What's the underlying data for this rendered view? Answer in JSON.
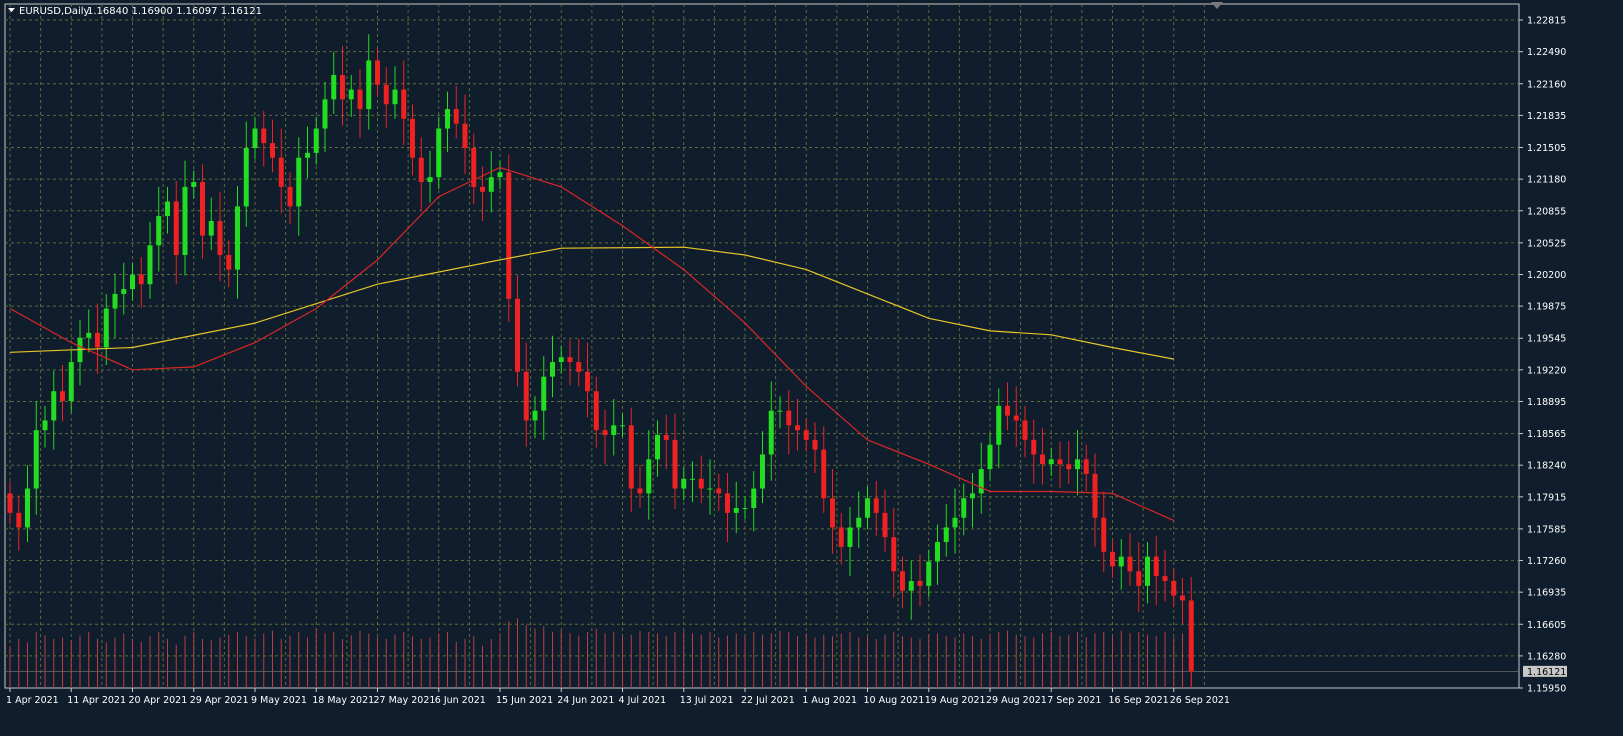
{
  "chart_data": {
    "type": "candlestick",
    "symbol": "EURUSD",
    "timeframe": "Daily",
    "ohlc_header": [
      "1.16840",
      "1.16900",
      "1.16097",
      "1.16121"
    ],
    "current_price": 1.16121,
    "current_price_label": "1.16121",
    "ylim": [
      1.1595,
      1.2298
    ],
    "y_ticks": [
      "1.22815",
      "1.22490",
      "1.22160",
      "1.21835",
      "1.21505",
      "1.21180",
      "1.20855",
      "1.20525",
      "1.20200",
      "1.19875",
      "1.19545",
      "1.19220",
      "1.18895",
      "1.18565",
      "1.18240",
      "1.17915",
      "1.17585",
      "1.17260",
      "1.16935",
      "1.16605",
      "1.16280",
      "1.15950"
    ],
    "x_labels": [
      {
        "i": 0,
        "label": "1 Apr 2021"
      },
      {
        "i": 7,
        "label": "11 Apr 2021"
      },
      {
        "i": 14,
        "label": "20 Apr 2021"
      },
      {
        "i": 21,
        "label": "29 Apr 2021"
      },
      {
        "i": 28,
        "label": "9 May 2021"
      },
      {
        "i": 35,
        "label": "18 May 2021"
      },
      {
        "i": 42,
        "label": "27 May 2021"
      },
      {
        "i": 49,
        "label": "6 Jun 2021"
      },
      {
        "i": 56,
        "label": "15 Jun 2021"
      },
      {
        "i": 63,
        "label": "24 Jun 2021"
      },
      {
        "i": 70,
        "label": "4 Jul 2021"
      },
      {
        "i": 77,
        "label": "13 Jul 2021"
      },
      {
        "i": 84,
        "label": "22 Jul 2021"
      },
      {
        "i": 91,
        "label": "1 Aug 2021"
      },
      {
        "i": 98,
        "label": "10 Aug 2021"
      },
      {
        "i": 105,
        "label": "19 Aug 2021"
      },
      {
        "i": 112,
        "label": "29 Aug 2021"
      },
      {
        "i": 119,
        "label": "7 Sep 2021"
      },
      {
        "i": 126,
        "label": "16 Sep 2021"
      },
      {
        "i": 133,
        "label": "26 Sep 2021"
      }
    ],
    "close_series": [
      1.1775,
      1.176,
      1.18,
      1.186,
      1.187,
      1.19,
      1.189,
      1.193,
      1.1955,
      1.196,
      1.1945,
      1.1985,
      1.2,
      1.2005,
      1.202,
      1.201,
      1.205,
      1.208,
      1.2095,
      1.204,
      1.211,
      1.2115,
      1.206,
      1.2075,
      1.204,
      1.2025,
      1.209,
      1.215,
      1.217,
      1.2155,
      1.214,
      1.211,
      1.209,
      1.214,
      1.2145,
      1.217,
      1.22,
      1.2225,
      1.22,
      1.221,
      1.219,
      1.224,
      1.2215,
      1.2195,
      1.221,
      1.218,
      1.214,
      1.2115,
      1.212,
      1.217,
      1.219,
      1.2175,
      1.215,
      1.211,
      1.2105,
      1.212,
      1.2125,
      1.1995,
      1.192,
      1.187,
      1.188,
      1.1915,
      1.193,
      1.1935,
      1.193,
      1.192,
      1.19,
      1.186,
      1.1855,
      1.1865,
      1.1865,
      1.18,
      1.1795,
      1.183,
      1.1855,
      1.185,
      1.18,
      1.181,
      1.181,
      1.18,
      1.18,
      1.1795,
      1.1775,
      1.178,
      1.178,
      1.18,
      1.1835,
      1.188,
      1.188,
      1.1865,
      1.186,
      1.185,
      1.184,
      1.179,
      1.176,
      1.174,
      1.176,
      1.177,
      1.179,
      1.1775,
      1.175,
      1.1715,
      1.1695,
      1.1705,
      1.17,
      1.1725,
      1.1745,
      1.176,
      1.177,
      1.179,
      1.1795,
      1.182,
      1.1845,
      1.1885,
      1.1875,
      1.187,
      1.185,
      1.1835,
      1.1825,
      1.183,
      1.1825,
      1.182,
      1.183,
      1.1815,
      1.177,
      1.1735,
      1.172,
      1.173,
      1.1715,
      1.17,
      1.173,
      1.171,
      1.1705,
      1.169,
      1.1685,
      1.1612
    ],
    "sma_200_yellow": [
      {
        "i": 0,
        "v": 1.194
      },
      {
        "i": 14,
        "v": 1.1945
      },
      {
        "i": 28,
        "v": 1.197
      },
      {
        "i": 42,
        "v": 1.201
      },
      {
        "i": 56,
        "v": 1.2035
      },
      {
        "i": 63,
        "v": 1.2047
      },
      {
        "i": 77,
        "v": 1.2048
      },
      {
        "i": 84,
        "v": 1.204
      },
      {
        "i": 91,
        "v": 1.2025
      },
      {
        "i": 98,
        "v": 1.2
      },
      {
        "i": 105,
        "v": 1.1975
      },
      {
        "i": 112,
        "v": 1.1962
      },
      {
        "i": 119,
        "v": 1.1958
      },
      {
        "i": 126,
        "v": 1.1945
      },
      {
        "i": 133,
        "v": 1.1933
      }
    ],
    "sma_50_red": [
      {
        "i": 0,
        "v": 1.1985
      },
      {
        "i": 7,
        "v": 1.195
      },
      {
        "i": 14,
        "v": 1.1922
      },
      {
        "i": 21,
        "v": 1.1925
      },
      {
        "i": 28,
        "v": 1.195
      },
      {
        "i": 35,
        "v": 1.1985
      },
      {
        "i": 42,
        "v": 1.2035
      },
      {
        "i": 49,
        "v": 1.21
      },
      {
        "i": 56,
        "v": 1.213
      },
      {
        "i": 63,
        "v": 1.211
      },
      {
        "i": 70,
        "v": 1.207
      },
      {
        "i": 77,
        "v": 1.2025
      },
      {
        "i": 84,
        "v": 1.197
      },
      {
        "i": 91,
        "v": 1.1905
      },
      {
        "i": 98,
        "v": 1.185
      },
      {
        "i": 105,
        "v": 1.1825
      },
      {
        "i": 112,
        "v": 1.1797
      },
      {
        "i": 119,
        "v": 1.1797
      },
      {
        "i": 126,
        "v": 1.1795
      },
      {
        "i": 133,
        "v": 1.1767
      }
    ],
    "volume_relative": [
      0.6,
      0.7,
      0.65,
      0.8,
      0.75,
      0.7,
      0.72,
      0.68,
      0.75,
      0.8,
      0.7,
      0.65,
      0.72,
      0.78,
      0.7,
      0.66,
      0.74,
      0.8,
      0.7,
      0.62,
      0.75,
      0.8,
      0.7,
      0.68,
      0.72,
      0.76,
      0.8,
      0.74,
      0.7,
      0.78,
      0.82,
      0.7,
      0.75,
      0.8,
      0.72,
      0.85,
      0.78,
      0.8,
      0.7,
      0.75,
      0.82,
      0.78,
      0.72,
      0.7,
      0.76,
      0.8,
      0.74,
      0.7,
      0.72,
      0.78,
      0.8,
      0.66,
      0.7,
      0.74,
      0.6,
      0.7,
      0.78,
      0.95,
      1.0,
      0.9,
      0.85,
      0.88,
      0.8,
      0.82,
      0.78,
      0.75,
      0.8,
      0.85,
      0.78,
      0.8,
      0.74,
      0.76,
      0.82,
      0.8,
      0.78,
      0.74,
      0.8,
      0.82,
      0.78,
      0.76,
      0.8,
      0.72,
      0.75,
      0.78,
      0.74,
      0.8,
      0.76,
      0.78,
      0.82,
      0.8,
      0.74,
      0.78,
      0.72,
      0.76,
      0.74,
      0.78,
      0.8,
      0.72,
      0.74,
      0.7,
      0.76,
      0.8,
      0.74,
      0.72,
      0.7,
      0.76,
      0.78,
      0.74,
      0.72,
      0.78,
      0.74,
      0.7,
      0.76,
      0.8,
      0.82,
      0.76,
      0.74,
      0.72,
      0.78,
      0.8,
      0.74,
      0.76,
      0.8,
      0.72,
      0.78,
      0.8,
      0.74,
      0.82,
      0.78,
      0.8,
      0.76,
      0.74,
      0.8,
      0.72,
      0.78,
      0.9
    ],
    "colors": {
      "background": "#0f1d2c",
      "grid": "#5d6b3a",
      "axis": "#c8c8c8",
      "bull": "#22dd22",
      "bear": "#ee2222",
      "sma_200": "#e6c52a",
      "sma_50": "#dd2626",
      "volume": "#b84040",
      "price_box_bg": "#c8c8c8"
    }
  }
}
